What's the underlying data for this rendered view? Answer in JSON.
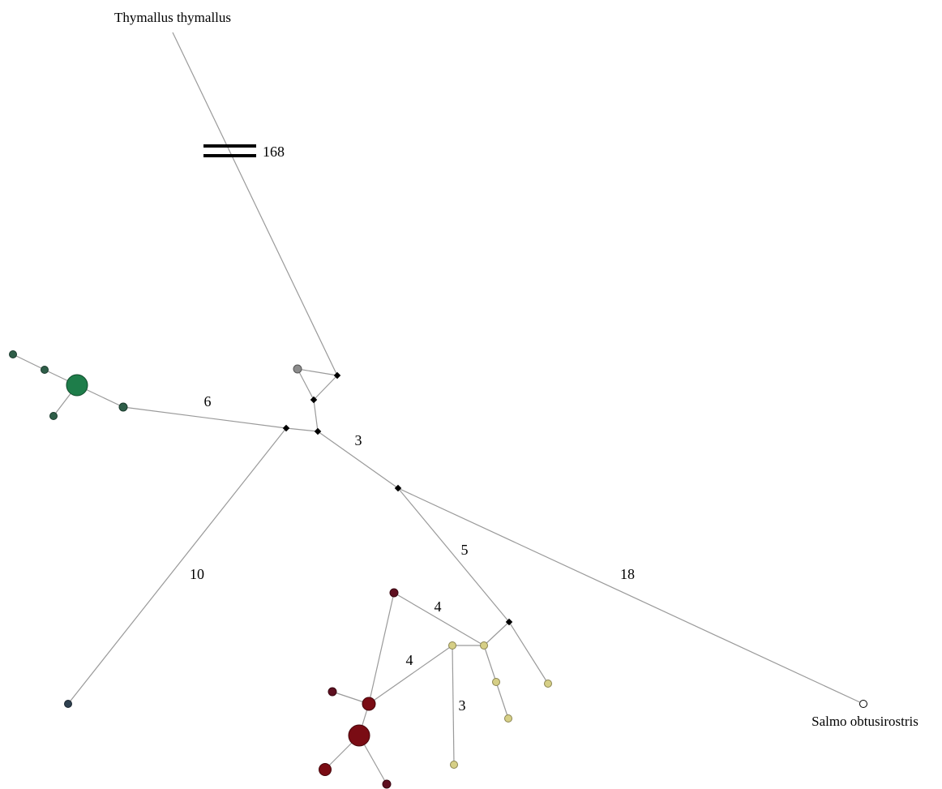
{
  "network": {
    "taxon_labels": {
      "thymallus": "Thymallus thymallus",
      "salmo": "Salmo obtusirostris"
    },
    "mutation_steps": {
      "outgroup_break": "168",
      "green_branch": "6",
      "center_branch": "3",
      "lone_branch": "10",
      "tan_branch": "5",
      "salmo_branch": "18",
      "red_tan_upper": "4",
      "red_tan_lower": "4",
      "tan_down": "3"
    },
    "colors": {
      "green": "#1e7d4a",
      "dark_green": "#2e5e48",
      "gray": "#8c8c8c",
      "black": "#000000",
      "dark_red": "#7a0c14",
      "maroon": "#5e0f20",
      "tan": "#d6cf86",
      "slate": "#2f4150",
      "white": "#ffffff"
    }
  }
}
